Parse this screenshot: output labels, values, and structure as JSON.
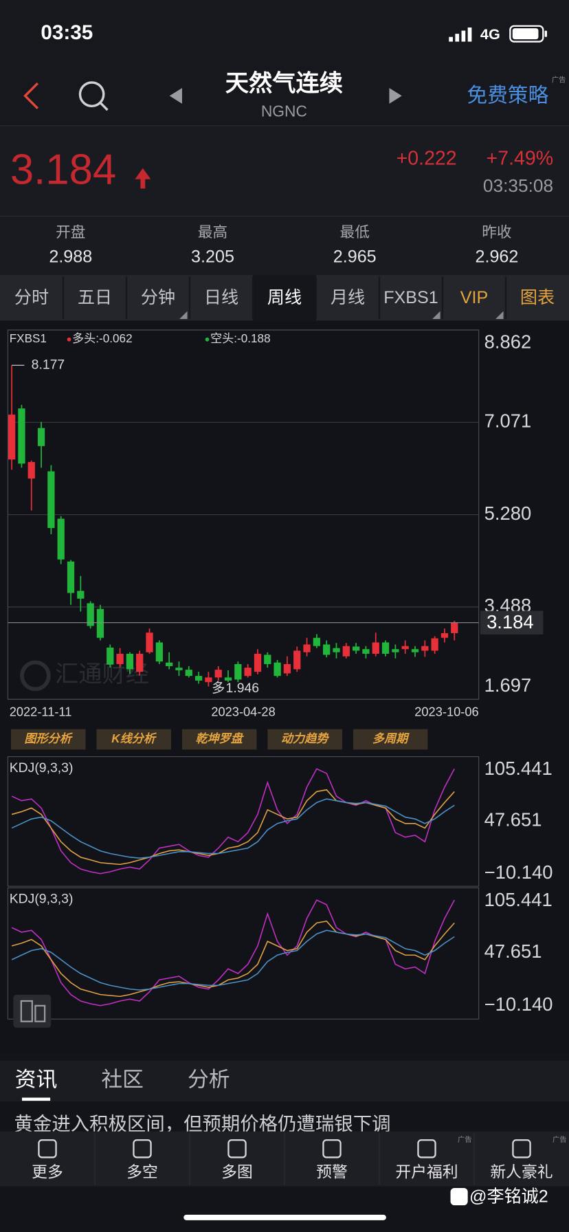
{
  "status": {
    "time": "03:35",
    "network": "4G"
  },
  "header": {
    "title": "天然气连续",
    "code": "NGNC",
    "strategy": "免费策略",
    "ad": "广告"
  },
  "quote": {
    "price": "3.184",
    "change": "+0.222",
    "change_pct": "+7.49%",
    "time": "03:35:08"
  },
  "stats": [
    {
      "label": "开盘",
      "value": "2.988"
    },
    {
      "label": "最高",
      "value": "3.205"
    },
    {
      "label": "最低",
      "value": "2.965"
    },
    {
      "label": "昨收",
      "value": "2.962"
    }
  ],
  "tabs": [
    "分时",
    "五日",
    "分钟",
    "日线",
    "周线",
    "月线",
    "FXBS1",
    "VIP",
    "图表"
  ],
  "chart_data": [
    {
      "type": "candlestick",
      "legend": {
        "name": "FXBS1",
        "long": "多头:-0.062",
        "short": "空头:-0.188"
      },
      "up_color": "#e8303a",
      "down_color": "#22b53c",
      "ylim": [
        1.697,
        8.862
      ],
      "yticks": [
        8.862,
        7.071,
        {
          "value": 5.28,
          "label": "5.280"
        },
        3.488,
        1.697
      ],
      "grid": true,
      "x_labels": [
        "2022-11-11",
        "2023-04-28",
        "2023-10-06"
      ],
      "low_marker": "多",
      "watermark": "汇通财经",
      "candles": [
        [
          6.35,
          8.177,
          6.15,
          7.22
        ],
        [
          7.34,
          7.41,
          6.19,
          6.27
        ],
        [
          5.98,
          6.33,
          5.36,
          6.3
        ],
        [
          6.96,
          7.08,
          6.19,
          6.61
        ],
        [
          6.12,
          6.24,
          4.9,
          5.02
        ],
        [
          5.2,
          5.25,
          4.32,
          4.41
        ],
        [
          4.37,
          4.4,
          3.53,
          3.76
        ],
        [
          3.8,
          4.09,
          3.4,
          3.65
        ],
        [
          3.56,
          3.6,
          3.07,
          3.12
        ],
        [
          3.45,
          3.53,
          2.84,
          2.89
        ],
        [
          2.7,
          2.76,
          2.31,
          2.37
        ],
        [
          2.38,
          2.69,
          2.31,
          2.58
        ],
        [
          2.58,
          2.61,
          2.19,
          2.28
        ],
        [
          2.23,
          2.64,
          2.16,
          2.58
        ],
        [
          2.61,
          3.07,
          2.58,
          2.99
        ],
        [
          2.8,
          2.84,
          2.38,
          2.43
        ],
        [
          2.41,
          2.61,
          2.28,
          2.34
        ],
        [
          2.31,
          2.43,
          2.15,
          2.26
        ],
        [
          2.27,
          2.34,
          2.12,
          2.15
        ],
        [
          2.15,
          2.23,
          2.0,
          2.06
        ],
        [
          2.03,
          2.23,
          1.946,
          2.12
        ],
        [
          2.12,
          2.34,
          2.06,
          2.27
        ],
        [
          2.12,
          2.26,
          2.03,
          2.06
        ],
        [
          2.38,
          2.43,
          2.03,
          2.08
        ],
        [
          2.15,
          2.38,
          2.12,
          2.31
        ],
        [
          2.23,
          2.67,
          2.18,
          2.58
        ],
        [
          2.56,
          2.61,
          2.31,
          2.38
        ],
        [
          2.41,
          2.46,
          2.12,
          2.15
        ],
        [
          2.2,
          2.53,
          2.15,
          2.38
        ],
        [
          2.28,
          2.72,
          2.23,
          2.64
        ],
        [
          2.61,
          2.89,
          2.53,
          2.76
        ],
        [
          2.89,
          2.96,
          2.69,
          2.73
        ],
        [
          2.76,
          2.84,
          2.51,
          2.56
        ],
        [
          2.69,
          2.79,
          2.49,
          2.61
        ],
        [
          2.53,
          2.79,
          2.49,
          2.73
        ],
        [
          2.72,
          2.79,
          2.58,
          2.64
        ],
        [
          2.67,
          2.73,
          2.49,
          2.58
        ],
        [
          2.58,
          2.99,
          2.53,
          2.8
        ],
        [
          2.8,
          2.84,
          2.53,
          2.58
        ],
        [
          2.67,
          2.76,
          2.49,
          2.61
        ],
        [
          2.67,
          2.84,
          2.58,
          2.73
        ],
        [
          2.67,
          2.73,
          2.52,
          2.61
        ],
        [
          2.64,
          2.84,
          2.52,
          2.73
        ],
        [
          2.64,
          2.92,
          2.58,
          2.88
        ],
        [
          2.89,
          3.07,
          2.8,
          2.98
        ],
        [
          2.98,
          3.22,
          2.84,
          3.184
        ]
      ]
    },
    {
      "type": "line",
      "title": "KDJ(9,3,3)",
      "ylim": [
        -10.14,
        105.441
      ],
      "yticks": [
        105.441,
        47.651,
        {
          "value": -10.14,
          "label": "−10.140"
        }
      ],
      "series": [
        {
          "color": "#c22fc6",
          "values": [
            75,
            70,
            72,
            62,
            40,
            15,
            2,
            -5,
            -8,
            -10,
            -8,
            -5,
            -3,
            -5,
            5,
            18,
            20,
            22,
            15,
            10,
            8,
            18,
            30,
            25,
            35,
            55,
            90,
            60,
            45,
            55,
            85,
            105,
            100,
            75,
            68,
            65,
            70,
            65,
            62,
            35,
            30,
            32,
            25,
            60,
            85,
            105
          ]
        },
        {
          "color": "#e0a244",
          "values": [
            55,
            58,
            62,
            55,
            40,
            25,
            15,
            8,
            5,
            2,
            1,
            0,
            2,
            5,
            8,
            12,
            15,
            16,
            14,
            12,
            10,
            12,
            18,
            20,
            25,
            35,
            60,
            55,
            50,
            52,
            70,
            80,
            82,
            70,
            68,
            66,
            68,
            65,
            62,
            50,
            45,
            45,
            40,
            55,
            68,
            80
          ]
        },
        {
          "color": "#4b92c9",
          "values": [
            40,
            45,
            50,
            52,
            48,
            40,
            32,
            25,
            20,
            15,
            12,
            10,
            8,
            7,
            8,
            10,
            12,
            14,
            14,
            13,
            12,
            12,
            14,
            16,
            18,
            25,
            38,
            45,
            48,
            50,
            60,
            68,
            72,
            70,
            68,
            67,
            68,
            66,
            64,
            58,
            52,
            50,
            45,
            50,
            58,
            65
          ]
        }
      ]
    },
    {
      "type": "line",
      "title": "KDJ(9,3,3)",
      "ylim": [
        -10.14,
        105.441
      ],
      "yticks": [
        105.441,
        47.651,
        {
          "value": -10.14,
          "label": "−10.140"
        }
      ],
      "series": [
        {
          "color": "#c22fc6",
          "values": [
            75,
            70,
            72,
            62,
            40,
            15,
            2,
            -5,
            -8,
            -10,
            -8,
            -5,
            -3,
            -5,
            5,
            18,
            20,
            22,
            15,
            10,
            8,
            18,
            30,
            25,
            35,
            55,
            90,
            60,
            45,
            55,
            85,
            105,
            100,
            75,
            68,
            65,
            70,
            65,
            62,
            35,
            30,
            32,
            25,
            60,
            85,
            105
          ]
        },
        {
          "color": "#e0a244",
          "values": [
            55,
            58,
            62,
            55,
            40,
            25,
            15,
            8,
            5,
            2,
            1,
            0,
            2,
            5,
            8,
            12,
            15,
            16,
            14,
            12,
            10,
            12,
            18,
            20,
            25,
            35,
            60,
            55,
            50,
            52,
            70,
            80,
            82,
            70,
            68,
            66,
            68,
            65,
            62,
            50,
            45,
            45,
            40,
            55,
            68,
            80
          ]
        },
        {
          "color": "#4b92c9",
          "values": [
            40,
            45,
            50,
            52,
            48,
            40,
            32,
            25,
            20,
            15,
            12,
            10,
            8,
            7,
            8,
            10,
            12,
            14,
            14,
            13,
            12,
            12,
            14,
            16,
            18,
            25,
            38,
            45,
            48,
            50,
            60,
            68,
            72,
            70,
            68,
            67,
            68,
            66,
            64,
            58,
            52,
            50,
            45,
            50,
            58,
            65
          ]
        }
      ]
    }
  ],
  "tools": [
    "图形分析",
    "K线分析",
    "乾坤罗盘",
    "动力趋势",
    "多周期"
  ],
  "news_tabs": [
    "资讯",
    "社区",
    "分析"
  ],
  "news_headline": "黄金进入积极区间，但预期价格仍遭瑞银下调",
  "nav": [
    {
      "label": "更多"
    },
    {
      "label": "多空"
    },
    {
      "label": "多图"
    },
    {
      "label": "预警"
    },
    {
      "label": "开户福利",
      "ad": "广告"
    },
    {
      "label": "新人豪礼",
      "ad": "广告"
    }
  ],
  "credit": "@李铭诚2"
}
